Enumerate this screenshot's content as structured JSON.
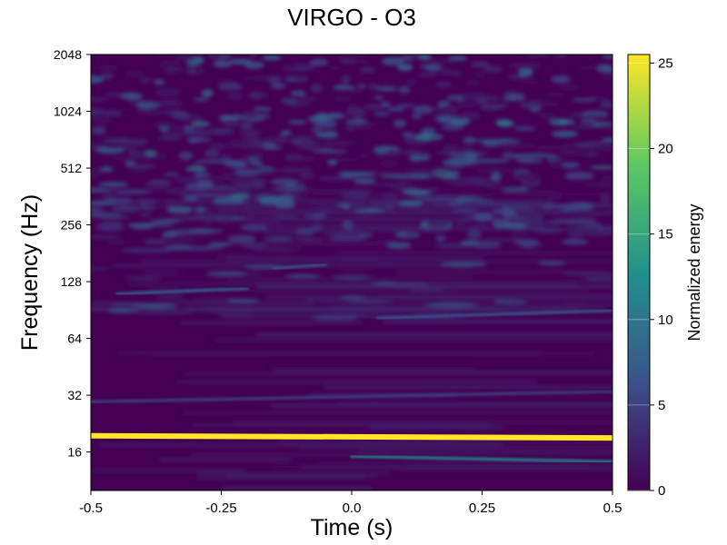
{
  "chart_data": {
    "type": "heatmap",
    "title": "VIRGO - O3",
    "xlabel": "Time (s)",
    "ylabel": "Frequency (Hz)",
    "xlim": [
      -0.5,
      0.5
    ],
    "ylim": [
      10,
      2048
    ],
    "yscale": "log2",
    "xticks": [
      -0.5,
      -0.25,
      0.0,
      0.25,
      0.5
    ],
    "xtick_labels": [
      "-0.5",
      "-0.25",
      "0.0",
      "0.25",
      "0.5"
    ],
    "yticks": [
      16,
      32,
      64,
      128,
      256,
      512,
      1024,
      2048
    ],
    "ytick_labels": [
      "16",
      "32",
      "64",
      "128",
      "256",
      "512",
      "1024",
      "2048"
    ],
    "colorbar": {
      "label": "Normalized energy",
      "range": [
        0,
        25.5
      ],
      "ticks": [
        0,
        5,
        10,
        15,
        20,
        25
      ],
      "tick_labels": [
        "0",
        "5",
        "10",
        "15",
        "20",
        "25"
      ],
      "colormap": "viridis",
      "colors": [
        "#440154",
        "#3b528b",
        "#21918c",
        "#5ec962",
        "#fde725"
      ]
    },
    "features": [
      {
        "kind": "line",
        "t_start": -0.5,
        "t_end": 0.5,
        "f_start": 19.5,
        "f_end": 19.0,
        "energy": 25.5
      },
      {
        "kind": "line",
        "t_start": 0.0,
        "t_end": 0.5,
        "f_start": 15.2,
        "f_end": 14.2,
        "energy": 12
      },
      {
        "kind": "line",
        "t_start": -0.5,
        "t_end": 0.5,
        "f_start": 13.0,
        "f_end": 13.0,
        "energy": 3
      },
      {
        "kind": "line",
        "t_start": -0.5,
        "t_end": 0.5,
        "f_start": 29.5,
        "f_end": 33.5,
        "energy": 5
      },
      {
        "kind": "line",
        "t_start": -0.45,
        "t_end": -0.2,
        "f_start": 110,
        "f_end": 118,
        "energy": 8
      },
      {
        "kind": "line",
        "t_start": 0.05,
        "t_end": 0.5,
        "f_start": 82,
        "f_end": 90,
        "energy": 7
      },
      {
        "kind": "line",
        "t_start": -0.15,
        "t_end": -0.05,
        "f_start": 150,
        "f_end": 158,
        "energy": 7
      }
    ]
  }
}
